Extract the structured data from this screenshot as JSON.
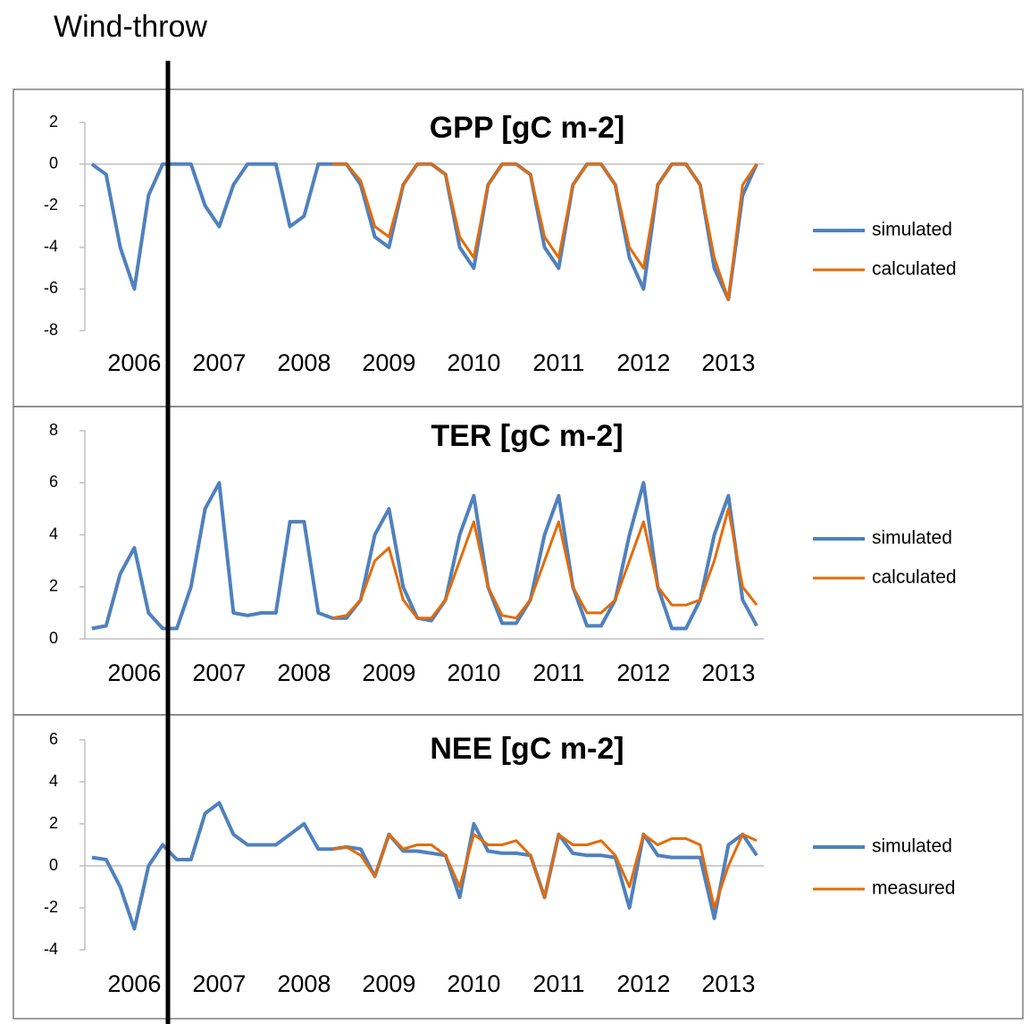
{
  "annotation": "Wind-throw",
  "chart_data": [
    {
      "type": "line",
      "title": "GPP [gC m-2]",
      "categories": [
        null,
        null,
        null,
        "2006",
        null,
        null,
        null,
        null,
        null,
        "2007",
        null,
        null,
        null,
        null,
        null,
        "2008",
        null,
        null,
        null,
        null,
        null,
        "2009",
        null,
        null,
        null,
        null,
        null,
        "2010",
        null,
        null,
        null,
        null,
        null,
        "2011",
        null,
        null,
        null,
        null,
        null,
        "2012",
        null,
        null,
        null,
        null,
        null,
        "2013",
        null,
        null
      ],
      "ylim": [
        -8,
        2
      ],
      "yticks": [
        -8,
        -6,
        -4,
        -2,
        0,
        2
      ],
      "series": [
        {
          "name": "simulated",
          "color": "#4f81bd",
          "values": [
            0,
            -0.5,
            -4,
            -6,
            -1.5,
            0,
            0,
            0,
            -2,
            -3,
            -1,
            0,
            0,
            0,
            -3,
            -2.5,
            0,
            0,
            0,
            -1,
            -3.5,
            -4,
            -1,
            0,
            0,
            -0.5,
            -4,
            -5,
            -1,
            0,
            0,
            -0.5,
            -4,
            -5,
            -1,
            0,
            0,
            -1,
            -4.5,
            -6,
            -1,
            0,
            0,
            -1,
            -5,
            -6.5,
            -1.5,
            0
          ]
        },
        {
          "name": "calculated",
          "color": "#e36c09",
          "values": [
            null,
            null,
            null,
            null,
            null,
            null,
            null,
            null,
            null,
            null,
            null,
            null,
            null,
            null,
            null,
            null,
            null,
            0,
            0,
            -0.8,
            -3,
            -3.5,
            -1,
            0,
            0,
            -0.5,
            -3.5,
            -4.5,
            -1,
            0,
            0,
            -0.5,
            -3.5,
            -4.5,
            -1,
            0,
            0,
            -1,
            -4,
            -5,
            -1,
            0,
            0,
            -1,
            -4.5,
            -6.5,
            -1,
            0
          ]
        }
      ]
    },
    {
      "type": "line",
      "title": "TER [gC m-2]",
      "categories": [
        null,
        null,
        null,
        "2006",
        null,
        null,
        null,
        null,
        null,
        "2007",
        null,
        null,
        null,
        null,
        null,
        "2008",
        null,
        null,
        null,
        null,
        null,
        "2009",
        null,
        null,
        null,
        null,
        null,
        "2010",
        null,
        null,
        null,
        null,
        null,
        "2011",
        null,
        null,
        null,
        null,
        null,
        "2012",
        null,
        null,
        null,
        null,
        null,
        "2013",
        null,
        null
      ],
      "ylim": [
        0,
        8
      ],
      "yticks": [
        0,
        2,
        4,
        6,
        8
      ],
      "series": [
        {
          "name": "simulated",
          "color": "#4f81bd",
          "values": [
            0.4,
            0.5,
            2.5,
            3.5,
            1,
            0.4,
            0.4,
            2,
            5,
            6,
            1,
            0.9,
            1,
            1,
            4.5,
            4.5,
            1,
            0.8,
            0.8,
            1.5,
            4,
            5,
            2,
            0.8,
            0.7,
            1.5,
            4,
            5.5,
            2,
            0.6,
            0.6,
            1.5,
            4,
            5.5,
            2,
            0.5,
            0.5,
            1.5,
            4,
            6,
            2,
            0.4,
            0.4,
            1.5,
            4,
            5.5,
            1.5,
            0.5
          ]
        },
        {
          "name": "calculated",
          "color": "#e36c09",
          "values": [
            null,
            null,
            null,
            null,
            null,
            null,
            null,
            null,
            null,
            null,
            null,
            null,
            null,
            null,
            null,
            null,
            null,
            0.8,
            0.9,
            1.5,
            3,
            3.5,
            1.5,
            0.8,
            0.8,
            1.5,
            3,
            4.5,
            2,
            0.9,
            0.8,
            1.5,
            3,
            4.5,
            2,
            1,
            1,
            1.5,
            3,
            4.5,
            2,
            1.3,
            1.3,
            1.5,
            3,
            5,
            2,
            1.3
          ]
        }
      ]
    },
    {
      "type": "line",
      "title": "NEE [gC m-2]",
      "categories": [
        null,
        null,
        null,
        "2006",
        null,
        null,
        null,
        null,
        null,
        "2007",
        null,
        null,
        null,
        null,
        null,
        "2008",
        null,
        null,
        null,
        null,
        null,
        "2009",
        null,
        null,
        null,
        null,
        null,
        "2010",
        null,
        null,
        null,
        null,
        null,
        "2011",
        null,
        null,
        null,
        null,
        null,
        "2012",
        null,
        null,
        null,
        null,
        null,
        "2013",
        null,
        null
      ],
      "ylim": [
        -4,
        6
      ],
      "yticks": [
        -4,
        -2,
        0,
        2,
        4,
        6
      ],
      "series": [
        {
          "name": "simulated",
          "color": "#4f81bd",
          "values": [
            0.4,
            0.3,
            -1,
            -3,
            0,
            1,
            0.3,
            0.3,
            2.5,
            3,
            1.5,
            1,
            1,
            1,
            1.5,
            2,
            0.8,
            0.8,
            0.9,
            0.8,
            -0.5,
            1.5,
            0.7,
            0.7,
            0.6,
            0.5,
            -1.5,
            2,
            0.7,
            0.6,
            0.6,
            0.5,
            -1.5,
            1.5,
            0.6,
            0.5,
            0.5,
            0.4,
            -2,
            1.5,
            0.5,
            0.4,
            0.4,
            0.4,
            -2.5,
            1,
            1.5,
            0.5
          ]
        },
        {
          "name": "measured",
          "color": "#e36c09",
          "values": [
            null,
            null,
            null,
            null,
            null,
            null,
            null,
            null,
            null,
            null,
            null,
            null,
            null,
            null,
            null,
            null,
            null,
            0.8,
            0.9,
            0.5,
            -0.5,
            1.5,
            0.8,
            1,
            1,
            0.5,
            -1,
            1.5,
            1,
            1,
            1.2,
            0.5,
            -1.5,
            1.5,
            1,
            1,
            1.2,
            0.5,
            -1,
            1.5,
            1,
            1.3,
            1.3,
            1,
            -2,
            0,
            1.5,
            1.2
          ]
        }
      ]
    }
  ]
}
